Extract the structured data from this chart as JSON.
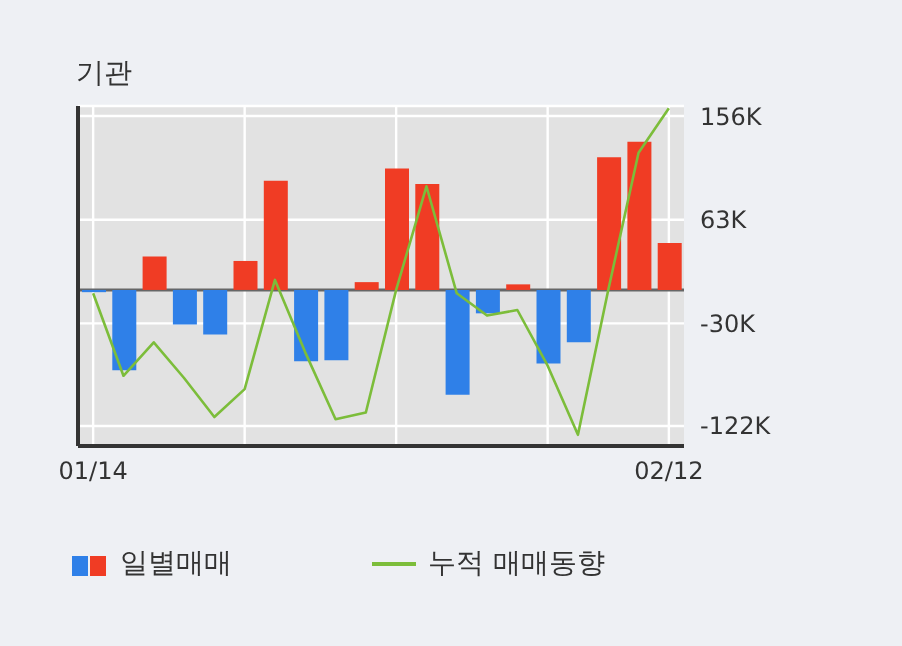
{
  "chart_data": {
    "type": "bar",
    "title": "기관",
    "categories": [
      "01/14",
      null,
      null,
      null,
      null,
      null,
      null,
      null,
      null,
      null,
      null,
      null,
      null,
      null,
      null,
      null,
      null,
      null,
      null,
      "02/12"
    ],
    "series": [
      {
        "name": "일별매매",
        "values": [
          -2,
          -72,
          30,
          -31,
          -40,
          26,
          98,
          -64,
          -63,
          7,
          109,
          95,
          -94,
          -21,
          5,
          -66,
          -47,
          119,
          133,
          42
        ],
        "colors": [
          "#2f80e8",
          "#2f80e8",
          "#f03c24",
          "#2f80e8",
          "#2f80e8",
          "#f03c24",
          "#f03c24",
          "#2f80e8",
          "#2f80e8",
          "#f03c24",
          "#f03c24",
          "#f03c24",
          "#2f80e8",
          "#2f80e8",
          "#f03c24",
          "#2f80e8",
          "#2f80e8",
          "#f03c24",
          "#f03c24",
          "#f03c24"
        ]
      },
      {
        "name": "누적 매매동향",
        "type": "line",
        "color": "#7cbd3a",
        "values": [
          -3,
          -77,
          -47,
          -79,
          -114,
          -89,
          9,
          -56,
          -116,
          -110,
          0,
          93,
          -3,
          -23,
          -18,
          -68,
          -130,
          0,
          123,
          163
        ]
      }
    ],
    "ylim": [
      -140,
      165
    ],
    "yticks": [
      {
        "value": 156,
        "label": "156K"
      },
      {
        "value": 63,
        "label": "63K"
      },
      {
        "value": -30,
        "label": "-30K"
      },
      {
        "value": -122,
        "label": "-122K"
      }
    ],
    "ref_lines": [
      {
        "axis": "y",
        "value": 0,
        "color": "#666666"
      }
    ],
    "grid": true,
    "legend": "bottom",
    "marker": "none",
    "line_style": "solid"
  }
}
